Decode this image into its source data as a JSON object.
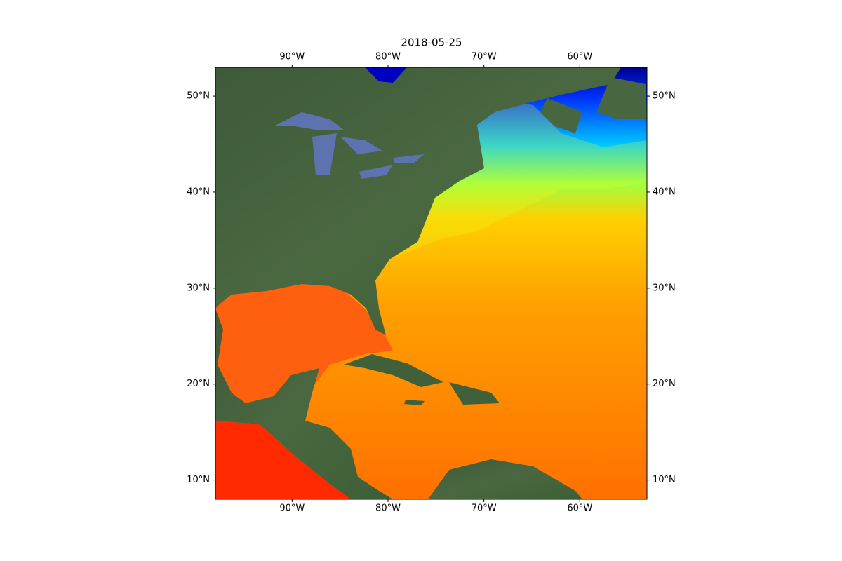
{
  "chart_data": {
    "type": "map",
    "title": "2018-05-25",
    "xlim": [
      -98,
      -53
    ],
    "ylim": [
      8,
      53
    ],
    "xticks": [
      {
        "value": -90,
        "label": "90°W"
      },
      {
        "value": -80,
        "label": "80°W"
      },
      {
        "value": -70,
        "label": "70°W"
      },
      {
        "value": -60,
        "label": "60°W"
      }
    ],
    "yticks": [
      {
        "value": 10,
        "label": "10°N"
      },
      {
        "value": 20,
        "label": "20°N"
      },
      {
        "value": 30,
        "label": "30°N"
      },
      {
        "value": 40,
        "label": "40°N"
      },
      {
        "value": 50,
        "label": "50°N"
      }
    ]
  }
}
